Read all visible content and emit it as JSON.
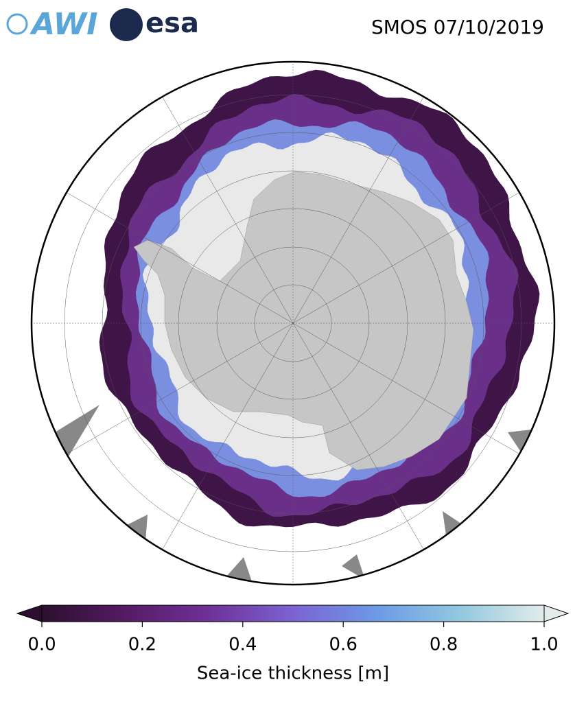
{
  "header": {
    "logos": [
      "AWI",
      "esa"
    ],
    "title": "SMOS 07/10/2019"
  },
  "colorbar": {
    "label": "Sea-ice thickness [m]",
    "lim": [
      0,
      1
    ],
    "ticks": [
      {
        "value": 0,
        "label": "0.0"
      },
      {
        "value": 0.2,
        "label": "0.2"
      },
      {
        "value": 0.4,
        "label": "0.4"
      },
      {
        "value": 0.6,
        "label": "0.6"
      },
      {
        "value": 0.8,
        "label": "0.8"
      },
      {
        "value": 1,
        "label": "1.0"
      }
    ],
    "colors": [
      "#2c0f2e",
      "#561b64",
      "#6f3198",
      "#7b63d2",
      "#6c9ae6",
      "#93c8df",
      "#e2ecea"
    ]
  }
}
